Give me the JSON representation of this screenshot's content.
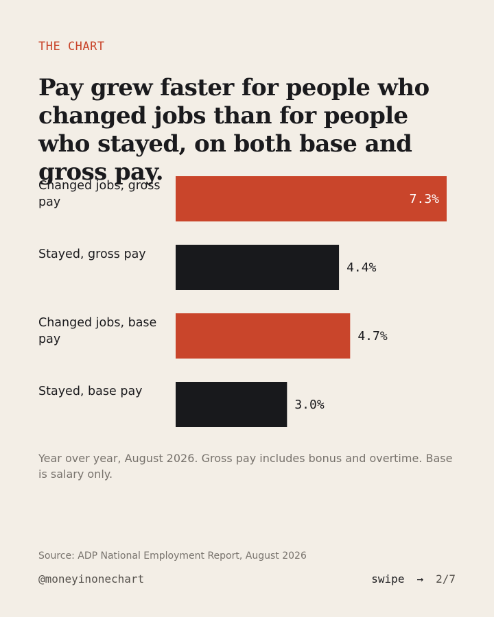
{
  "kicker": "THE CHART",
  "title": "Pay grew faster for people who changed jobs than for people who stayed, on both base and gross pay.",
  "note": "Year over year, August 2026. Gross pay includes bonus and overtime. Base is salary only.",
  "source": "Source: ADP National Employment Report, August 2026",
  "handle": "@moneyinonechart",
  "swipe": {
    "label": "swipe",
    "arrow": "→",
    "page": "2/7"
  },
  "colors": {
    "changed": "#c9452b",
    "stayed": "#18191c",
    "background": "#f3eee6"
  },
  "chart_data": {
    "type": "bar",
    "orientation": "horizontal",
    "categories": [
      "Changed jobs, gross pay",
      "Stayed, gross pay",
      "Changed jobs, base pay",
      "Stayed, base pay"
    ],
    "values": [
      7.3,
      4.4,
      4.7,
      3.0
    ],
    "value_labels": [
      "7.3%",
      "4.4%",
      "4.7%",
      "3.0%"
    ],
    "bar_colors": [
      "#c9452b",
      "#18191c",
      "#c9452b",
      "#18191c"
    ],
    "xlim": [
      0,
      7.3
    ],
    "grid": false,
    "legend": "none"
  }
}
